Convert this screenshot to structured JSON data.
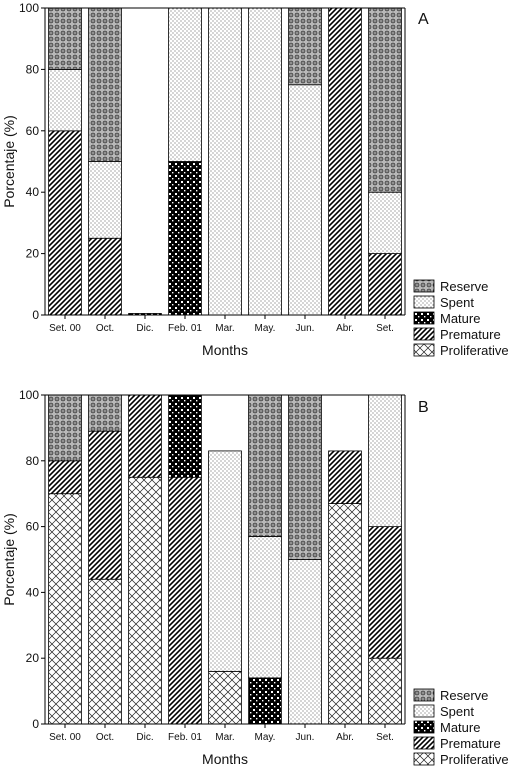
{
  "chart_data": [
    {
      "panel_label": "A",
      "type": "bar",
      "stacked": true,
      "xlabel": "Months",
      "ylabel": "Porcentaje (%)",
      "ylim": [
        0,
        100
      ],
      "yticks": [
        "0",
        "20",
        "40",
        "60",
        "80",
        "100"
      ],
      "categories": [
        "Set. 00",
        "Oct.",
        "Dic.",
        "Feb. 01",
        "Mar.",
        "May.",
        "Jun.",
        "Abr.",
        "Set."
      ],
      "series": [
        {
          "name": "Proliferative",
          "values": [
            0,
            0,
            0,
            0,
            0,
            0,
            0,
            0,
            0
          ]
        },
        {
          "name": "Premature",
          "values": [
            60,
            25,
            0,
            0,
            0,
            0,
            0,
            100,
            20
          ]
        },
        {
          "name": "Mature",
          "values": [
            0,
            0,
            0.5,
            50,
            0,
            0,
            0,
            0,
            0
          ]
        },
        {
          "name": "Spent",
          "values": [
            20,
            25,
            0,
            50,
            100,
            100,
            75,
            0,
            20
          ]
        },
        {
          "name": "Reserve",
          "values": [
            20,
            50,
            0,
            0,
            0,
            0,
            25,
            0,
            60
          ]
        }
      ],
      "legend_position": "bottom-right"
    },
    {
      "panel_label": "B",
      "type": "bar",
      "stacked": true,
      "xlabel": "Months",
      "ylabel": "Porcentaje (%)",
      "ylim": [
        0,
        100
      ],
      "yticks": [
        "0",
        "20",
        "40",
        "60",
        "80",
        "100"
      ],
      "categories": [
        "Set. 00",
        "Oct.",
        "Dic.",
        "Feb. 01",
        "Mar.",
        "May.",
        "Jun.",
        "Abr.",
        "Set."
      ],
      "series": [
        {
          "name": "Proliferative",
          "values": [
            70,
            44,
            75,
            0,
            16,
            0,
            0,
            67,
            20
          ]
        },
        {
          "name": "Premature",
          "values": [
            10,
            45,
            25,
            75,
            0,
            0,
            0,
            16,
            40
          ]
        },
        {
          "name": "Mature",
          "values": [
            0,
            0,
            0,
            25,
            0,
            14,
            0,
            0,
            0
          ]
        },
        {
          "name": "Spent",
          "values": [
            0,
            0,
            0,
            0,
            67,
            43,
            50,
            0,
            40
          ]
        },
        {
          "name": "Reserve",
          "values": [
            20,
            11,
            0,
            0,
            0,
            43,
            50,
            0,
            0
          ]
        }
      ],
      "legend_position": "bottom-right"
    }
  ]
}
